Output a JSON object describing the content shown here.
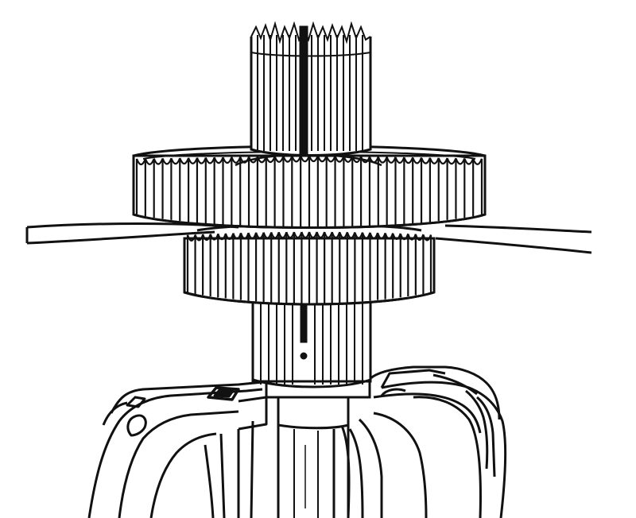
{
  "figure": {
    "line_color": "#111111",
    "background": "#ffffff",
    "parts": [
      "upper-splined-shaft",
      "shaft-keyway",
      "large-gear",
      "small-gear",
      "feeler-gauge-blade",
      "lower-splined-shaft",
      "bearing-retainer",
      "transmission-case"
    ]
  }
}
